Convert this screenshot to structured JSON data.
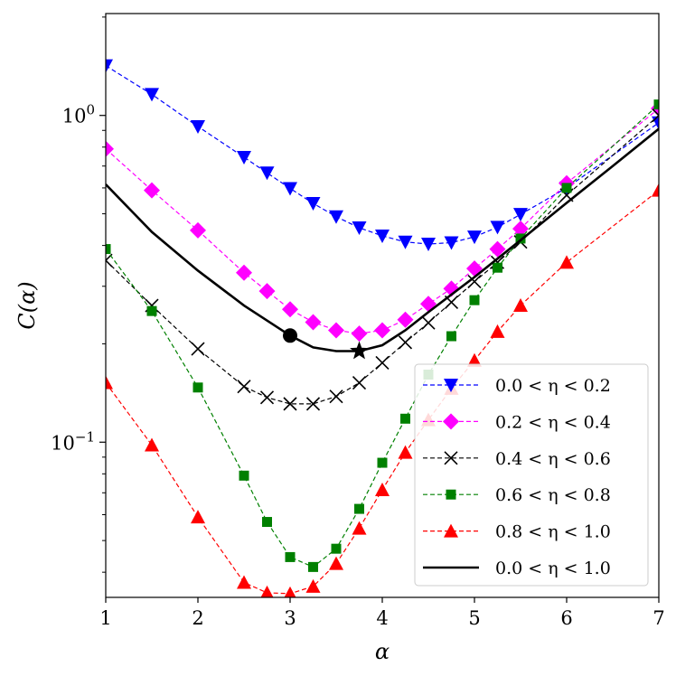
{
  "chart_data": {
    "type": "line",
    "xlabel": "α",
    "ylabel": "C(α)",
    "xlim": [
      1,
      7
    ],
    "ylim": [
      0.0335,
      2.05
    ],
    "yscale": "log",
    "legend_position": "lower-right",
    "x_ticks": [
      {
        "value": 1,
        "label": "1"
      },
      {
        "value": 2,
        "label": "2"
      },
      {
        "value": 3,
        "label": "3"
      },
      {
        "value": 4,
        "label": "4"
      },
      {
        "value": 5,
        "label": "5"
      },
      {
        "value": 6,
        "label": "6"
      },
      {
        "value": 7,
        "label": "7"
      }
    ],
    "y_ticks": [
      {
        "value": 1.0,
        "base": "10",
        "exp": "0"
      },
      {
        "value": 0.1,
        "base": "10",
        "exp": "−1"
      }
    ],
    "series": [
      {
        "name": "0.0 < η < 0.2",
        "color": "#0000ff",
        "linestyle": "dashed",
        "marker": "triangle-down",
        "x": [
          1.0,
          1.5,
          2.0,
          2.5,
          2.75,
          3.0,
          3.25,
          3.5,
          3.75,
          4.0,
          4.25,
          4.5,
          4.75,
          5.0,
          5.25,
          5.5,
          6.0,
          7.0
        ],
        "y": [
          1.42,
          1.16,
          0.925,
          0.745,
          0.667,
          0.598,
          0.538,
          0.49,
          0.453,
          0.428,
          0.41,
          0.404,
          0.408,
          0.425,
          0.455,
          0.498,
          0.6,
          0.95
        ]
      },
      {
        "name": "0.2 < η < 0.4",
        "color": "#ff00ff",
        "linestyle": "dashed",
        "marker": "diamond",
        "x": [
          1.0,
          1.5,
          2.0,
          2.5,
          2.75,
          3.0,
          3.25,
          3.5,
          3.75,
          4.0,
          4.25,
          4.5,
          4.75,
          5.0,
          5.25,
          5.5,
          6.0,
          7.0
        ],
        "y": [
          0.79,
          0.59,
          0.445,
          0.33,
          0.29,
          0.255,
          0.233,
          0.22,
          0.215,
          0.22,
          0.237,
          0.265,
          0.295,
          0.34,
          0.39,
          0.45,
          0.62,
          1.05
        ]
      },
      {
        "name": "0.4 < η < 0.6",
        "color": "#000000",
        "linestyle": "dashed",
        "marker": "x",
        "x": [
          1.0,
          1.5,
          2.0,
          2.5,
          2.75,
          3.0,
          3.25,
          3.5,
          3.75,
          4.0,
          4.25,
          4.5,
          4.75,
          5.0,
          5.25,
          5.5,
          6.0,
          7.0
        ],
        "y": [
          0.36,
          0.262,
          0.193,
          0.148,
          0.137,
          0.131,
          0.131,
          0.138,
          0.152,
          0.175,
          0.202,
          0.232,
          0.268,
          0.31,
          0.355,
          0.41,
          0.57,
          1.0
        ]
      },
      {
        "name": "0.6 < η < 0.8",
        "color": "#008000",
        "linestyle": "dashed",
        "marker": "square",
        "x": [
          1.0,
          1.5,
          2.0,
          2.5,
          2.75,
          3.0,
          3.25,
          3.5,
          3.75,
          4.0,
          4.25,
          4.5,
          4.75,
          5.0,
          5.25,
          5.5,
          6.0,
          7.0
        ],
        "y": [
          0.39,
          0.252,
          0.147,
          0.079,
          0.057,
          0.0445,
          0.0415,
          0.0472,
          0.0625,
          0.0865,
          0.118,
          0.161,
          0.211,
          0.272,
          0.342,
          0.42,
          0.6,
          1.08
        ]
      },
      {
        "name": "0.8 < η < 1.0",
        "color": "#ff0000",
        "linestyle": "dashed",
        "marker": "triangle-up",
        "x": [
          1.0,
          1.5,
          2.0,
          2.5,
          2.75,
          3.0,
          3.25,
          3.5,
          3.75,
          4.0,
          4.25,
          4.5,
          4.75,
          5.0,
          5.25,
          5.5,
          6.0,
          7.0
        ],
        "y": [
          0.152,
          0.098,
          0.059,
          0.0372,
          0.0346,
          0.0344,
          0.0362,
          0.0425,
          0.0545,
          0.0715,
          0.093,
          0.117,
          0.146,
          0.178,
          0.218,
          0.262,
          0.355,
          0.59
        ]
      },
      {
        "name": "0.0 < η < 1.0",
        "color": "#000000",
        "linestyle": "solid",
        "marker": "none",
        "x": [
          1.0,
          1.5,
          2.0,
          2.5,
          3.0,
          3.25,
          3.5,
          3.75,
          4.0,
          4.25,
          4.5,
          5.0,
          5.5,
          6.0,
          6.5,
          7.0
        ],
        "y": [
          0.615,
          0.44,
          0.335,
          0.262,
          0.212,
          0.195,
          0.19,
          0.19,
          0.198,
          0.22,
          0.25,
          0.32,
          0.415,
          0.54,
          0.7,
          0.91
        ]
      }
    ],
    "annotations": [
      {
        "name": "circle-marker",
        "shape": "circle",
        "x": 3.0,
        "y": 0.212,
        "color": "#000000"
      },
      {
        "name": "star-marker",
        "shape": "star",
        "x": 3.75,
        "y": 0.19,
        "color": "#000000"
      }
    ]
  }
}
